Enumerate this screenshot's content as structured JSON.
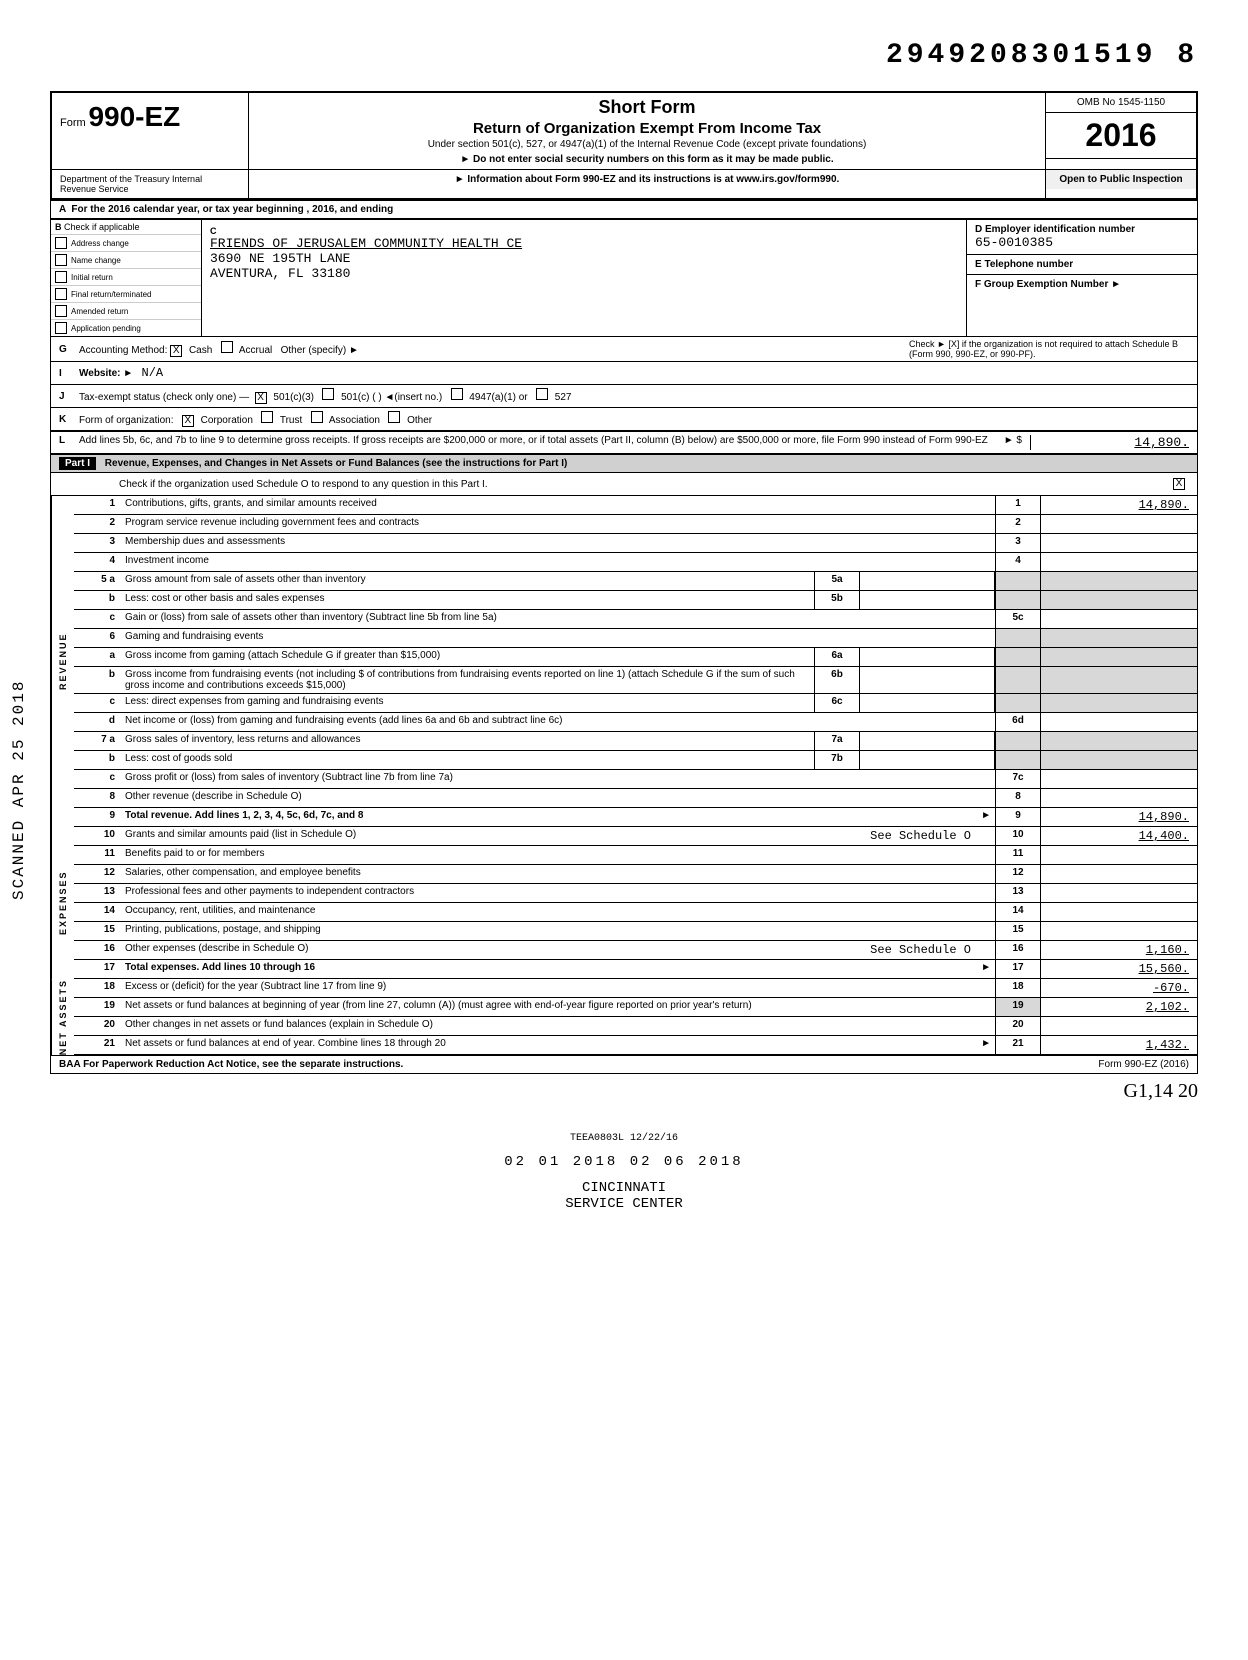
{
  "stamp_number": "2949208301519 8",
  "form": {
    "prefix": "Form",
    "number": "990-EZ",
    "title_main": "Short Form",
    "title_sub": "Return of Organization Exempt From Income Tax",
    "title_under": "Under section 501(c), 527, or 4947(a)(1) of the Internal Revenue Code (except private foundations)",
    "title_warn": "► Do not enter social security numbers on this form as it may be made public.",
    "title_info": "► Information about Form 990-EZ and its instructions is at www.irs.gov/form990.",
    "omb": "OMB No 1545-1150",
    "year": "2016",
    "open_public": "Open to Public Inspection",
    "dept": "Department of the Treasury\nInternal Revenue Service"
  },
  "section_a": "For the 2016 calendar year, or tax year beginning                          , 2016, and ending",
  "check_header": "Check if applicable",
  "check_items": [
    "Address change",
    "Name change",
    "Initial return",
    "Final return/terminated",
    "Amended return",
    "Application pending"
  ],
  "entity": {
    "label_c": "C",
    "name": "FRIENDS OF JERUSALEM COMMUNITY HEALTH CE",
    "address": "3690 NE 195TH LANE",
    "city": "AVENTURA, FL 33180"
  },
  "right_block": {
    "d_label": "D   Employer identification number",
    "d_value": "65-0010385",
    "e_label": "E   Telephone number",
    "e_value": "",
    "f_label": "F   Group Exemption Number  ►",
    "f_value": ""
  },
  "line_g": {
    "letter": "G",
    "text": "Accounting Method:",
    "cash": "Cash",
    "accrual": "Accrual",
    "other": "Other (specify) ►",
    "check_text": "Check ► [X] if the organization is not required to attach Schedule B (Form 990, 990-EZ, or 990-PF)."
  },
  "line_i": {
    "letter": "I",
    "text": "Website: ►",
    "value": "N/A"
  },
  "line_j": {
    "letter": "J",
    "text": "Tax-exempt status (check only one) —",
    "opts": [
      "501(c)(3)",
      "501(c) (      ) ◄(insert no.)",
      "4947(a)(1) or",
      "527"
    ]
  },
  "line_k": {
    "letter": "K",
    "text": "Form of organization:",
    "opts": [
      "Corporation",
      "Trust",
      "Association",
      "Other"
    ]
  },
  "line_l": {
    "letter": "L",
    "text": "Add lines 5b, 6c, and 7b to line 9 to determine gross receipts. If gross receipts are $200,000 or more, or if total assets (Part II, column (B) below) are $500,000 or more, file Form 990 instead of Form 990-EZ",
    "arrow": "► $",
    "amount": "14,890."
  },
  "part1": {
    "label": "Part I",
    "title": "Revenue, Expenses, and Changes in Net Assets or Fund Balances (see the instructions for Part I)",
    "check_text": "Check if the organization used Schedule O to respond to any question in this Part I."
  },
  "side_labels": [
    "REVENUE",
    "EXPENSES",
    "NET ASSETS"
  ],
  "rows": [
    {
      "n": "1",
      "desc": "Contributions, gifts, grants, and similar amounts received",
      "en": "1",
      "ev": "14,890."
    },
    {
      "n": "2",
      "desc": "Program service revenue including government fees and contracts",
      "en": "2",
      "ev": ""
    },
    {
      "n": "3",
      "desc": "Membership dues and assessments",
      "en": "3",
      "ev": ""
    },
    {
      "n": "4",
      "desc": "Investment income",
      "en": "4",
      "ev": ""
    },
    {
      "n": "5 a",
      "desc": "Gross amount from sale of assets other than inventory",
      "mn": "5a",
      "mv": "",
      "en": "",
      "ev": "",
      "shaded": true
    },
    {
      "n": "b",
      "desc": "Less: cost or other basis and sales expenses",
      "mn": "5b",
      "mv": "",
      "en": "",
      "ev": "",
      "shaded": true
    },
    {
      "n": "c",
      "desc": "Gain or (loss) from sale of assets other than inventory (Subtract line 5b from line 5a)",
      "en": "5c",
      "ev": ""
    },
    {
      "n": "6",
      "desc": "Gaming and fundraising events",
      "en": "",
      "ev": "",
      "shaded": true
    },
    {
      "n": "a",
      "desc": "Gross income from gaming (attach Schedule G if greater than $15,000)",
      "mn": "6a",
      "mv": "",
      "en": "",
      "ev": "",
      "shaded": true
    },
    {
      "n": "b",
      "desc": "Gross income from fundraising events (not including $                    of contributions from fundraising events reported on line 1) (attach Schedule G if the sum of such gross income and contributions exceeds $15,000)",
      "mn": "6b",
      "mv": "",
      "en": "",
      "ev": "",
      "shaded": true
    },
    {
      "n": "c",
      "desc": "Less: direct expenses from gaming and fundraising events",
      "mn": "6c",
      "mv": "",
      "en": "",
      "ev": "",
      "shaded": true
    },
    {
      "n": "d",
      "desc": "Net income or (loss) from gaming and fundraising events (add lines 6a and 6b and subtract line 6c)",
      "en": "6d",
      "ev": ""
    },
    {
      "n": "7 a",
      "desc": "Gross sales of inventory, less returns and allowances",
      "mn": "7a",
      "mv": "",
      "en": "",
      "ev": "",
      "shaded": true
    },
    {
      "n": "b",
      "desc": "Less: cost of goods sold",
      "mn": "7b",
      "mv": "",
      "en": "",
      "ev": "",
      "shaded": true
    },
    {
      "n": "c",
      "desc": "Gross profit or (loss) from sales of inventory (Subtract line 7b from line 7a)",
      "en": "7c",
      "ev": ""
    },
    {
      "n": "8",
      "desc": "Other revenue (describe in Schedule O)",
      "en": "8",
      "ev": ""
    },
    {
      "n": "9",
      "desc": "Total revenue. Add lines 1, 2, 3, 4, 5c, 6d, 7c, and 8",
      "en": "9",
      "ev": "14,890.",
      "bold": true,
      "arrow": true
    },
    {
      "n": "10",
      "desc": "Grants and similar amounts paid (list in Schedule O)",
      "note": "See Schedule O",
      "en": "10",
      "ev": "14,400."
    },
    {
      "n": "11",
      "desc": "Benefits paid to or for members",
      "en": "11",
      "ev": ""
    },
    {
      "n": "12",
      "desc": "Salaries, other compensation, and employee benefits",
      "en": "12",
      "ev": ""
    },
    {
      "n": "13",
      "desc": "Professional fees and other payments to independent contractors",
      "en": "13",
      "ev": ""
    },
    {
      "n": "14",
      "desc": "Occupancy, rent, utilities, and maintenance",
      "en": "14",
      "ev": ""
    },
    {
      "n": "15",
      "desc": "Printing, publications, postage, and shipping",
      "en": "15",
      "ev": ""
    },
    {
      "n": "16",
      "desc": "Other expenses (describe in Schedule O)",
      "note": "See Schedule O",
      "en": "16",
      "ev": "1,160."
    },
    {
      "n": "17",
      "desc": "Total expenses. Add lines 10 through 16",
      "en": "17",
      "ev": "15,560.",
      "bold": true,
      "arrow": true
    },
    {
      "n": "18",
      "desc": "Excess or (deficit) for the year (Subtract line 17 from line 9)",
      "en": "18",
      "ev": "-670."
    },
    {
      "n": "19",
      "desc": "Net assets or fund balances at beginning of year (from line 27, column (A)) (must agree with end-of-year figure reported on prior year's return)",
      "en": "19",
      "ev": "2,102.",
      "shaded_en": true
    },
    {
      "n": "20",
      "desc": "Other changes in net assets or fund balances (explain in Schedule O)",
      "en": "20",
      "ev": ""
    },
    {
      "n": "21",
      "desc": "Net assets or fund balances at end of year. Combine lines 18 through 20",
      "en": "21",
      "ev": "1,432.",
      "arrow": true
    }
  ],
  "footer": {
    "left": "BAA  For Paperwork Reduction Act Notice, see the separate instructions.",
    "right": "Form 990-EZ (2016)"
  },
  "bottom": {
    "teea": "TEEA0803L  12/22/16",
    "stamps": "02  01  2018          02  06  2018",
    "cincinnati": "CINCINNATI\nSERVICE CENTER",
    "hand": "G1,14   20"
  },
  "side_stamp": "SCANNED APR 25 2018"
}
